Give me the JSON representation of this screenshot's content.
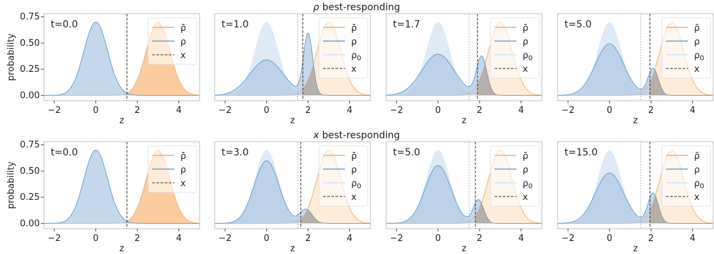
{
  "colors": {
    "blue_line": "#6a9fcc",
    "blue_fill": "#aec8e2",
    "blue_faint": "#dce8f4",
    "orange_line": "#f3b06a",
    "orange_fill": "#fcc99a",
    "orange_faint": "#fdebd7",
    "dashed": "#333333",
    "faint_dashed": "#9a9a9a",
    "frame": "#bdbdbd"
  },
  "rows": [
    {
      "title_sym": "ρ",
      "title_rest": " best-responding"
    },
    {
      "title_sym": "x",
      "title_rest": " best-responding"
    }
  ],
  "chart_data": [
    {
      "type": "area",
      "row": 0,
      "col": 0,
      "t_label": "t=0.0",
      "xlim": [
        -2.5,
        5
      ],
      "ylim": [
        -0.05,
        0.78
      ],
      "xticks": [
        -2,
        0,
        2,
        4
      ],
      "yticks": [
        0.0,
        0.25,
        0.5,
        0.75
      ],
      "ytick_labels": [
        "0.00",
        "0.25",
        "0.50",
        "0.75"
      ],
      "xlabel": "z",
      "ylabel": "probability",
      "x_line": 1.5,
      "x0_line": null,
      "rho": {
        "components": [
          {
            "w": 1.0,
            "mu": 0.0,
            "sd": 0.57
          }
        ]
      },
      "rho0": null,
      "rho_bar": {
        "mu": 3.0,
        "sd": 0.57,
        "w": 1.0
      },
      "legend": [
        "ρ̄",
        "ρ",
        "x"
      ]
    },
    {
      "type": "area",
      "row": 0,
      "col": 1,
      "t_label": "t=1.0",
      "xlim": [
        -2.5,
        5
      ],
      "ylim": [
        -0.05,
        0.78
      ],
      "xticks": [
        -2,
        0,
        2,
        4
      ],
      "yticks": [
        0.0,
        0.25,
        0.5,
        0.75
      ],
      "xlabel": "z",
      "ylabel": "",
      "x_line": 1.75,
      "x0_line": 1.5,
      "rho": {
        "components": [
          {
            "w": 0.68,
            "mu": 0.0,
            "sd": 0.8
          },
          {
            "w": 0.32,
            "mu": 2.0,
            "sd": 0.22
          }
        ]
      },
      "rho0": {
        "mu": 0.0,
        "sd": 0.57,
        "w": 1.0
      },
      "rho_bar": {
        "mu": 3.0,
        "sd": 0.57,
        "w": 1.0
      },
      "legend": [
        "ρ̄",
        "ρ",
        "ρ0",
        "x"
      ]
    },
    {
      "type": "area",
      "row": 0,
      "col": 2,
      "t_label": "t=1.7",
      "xlim": [
        -2.5,
        5
      ],
      "ylim": [
        -0.05,
        0.78
      ],
      "xticks": [
        -2,
        0,
        2,
        4
      ],
      "yticks": [
        0.0,
        0.25,
        0.5,
        0.75
      ],
      "xlabel": "z",
      "ylabel": "",
      "x_line": 1.9,
      "x0_line": 1.5,
      "rho": {
        "components": [
          {
            "w": 0.77,
            "mu": 0.0,
            "sd": 0.78
          },
          {
            "w": 0.23,
            "mu": 2.1,
            "sd": 0.25
          }
        ]
      },
      "rho0": {
        "mu": 0.0,
        "sd": 0.57,
        "w": 1.0
      },
      "rho_bar": {
        "mu": 3.0,
        "sd": 0.57,
        "w": 1.0
      },
      "legend": [
        "ρ̄",
        "ρ",
        "ρ0",
        "x"
      ]
    },
    {
      "type": "area",
      "row": 0,
      "col": 3,
      "t_label": "t=5.0",
      "xlim": [
        -2.5,
        5
      ],
      "ylim": [
        -0.05,
        0.78
      ],
      "xticks": [
        -2,
        0,
        2,
        4
      ],
      "yticks": [
        0.0,
        0.25,
        0.5,
        0.75
      ],
      "xlabel": "z",
      "ylabel": "",
      "x_line": 1.95,
      "x0_line": 1.5,
      "rho": {
        "components": [
          {
            "w": 0.84,
            "mu": 0.0,
            "sd": 0.68
          },
          {
            "w": 0.16,
            "mu": 2.1,
            "sd": 0.25
          }
        ]
      },
      "rho0": {
        "mu": 0.0,
        "sd": 0.57,
        "w": 1.0
      },
      "rho_bar": {
        "mu": 3.0,
        "sd": 0.57,
        "w": 1.0
      },
      "legend": [
        "ρ̄",
        "ρ",
        "ρ0",
        "x"
      ]
    },
    {
      "type": "area",
      "row": 1,
      "col": 0,
      "t_label": "t=0.0",
      "xlim": [
        -2.5,
        5
      ],
      "ylim": [
        -0.05,
        0.78
      ],
      "xticks": [
        -2,
        0,
        2,
        4
      ],
      "yticks": [
        0.0,
        0.25,
        0.5,
        0.75
      ],
      "ytick_labels": [
        "0.00",
        "0.25",
        "0.50",
        "0.75"
      ],
      "xlabel": "z",
      "ylabel": "probability",
      "x_line": 1.5,
      "x0_line": null,
      "rho": {
        "components": [
          {
            "w": 1.0,
            "mu": 0.0,
            "sd": 0.57
          }
        ]
      },
      "rho0": null,
      "rho_bar": {
        "mu": 3.0,
        "sd": 0.57,
        "w": 1.0
      },
      "legend": [
        "ρ̄",
        "ρ",
        "x"
      ]
    },
    {
      "type": "area",
      "row": 1,
      "col": 1,
      "t_label": "t=3.0",
      "xlim": [
        -2.5,
        5
      ],
      "ylim": [
        -0.05,
        0.78
      ],
      "xticks": [
        -2,
        0,
        2,
        4
      ],
      "yticks": [
        0.0,
        0.25,
        0.5,
        0.75
      ],
      "xlabel": "z",
      "ylabel": "",
      "x_line": 1.65,
      "x0_line": 1.5,
      "rho": {
        "components": [
          {
            "w": 0.9,
            "mu": 0.0,
            "sd": 0.6
          },
          {
            "w": 0.1,
            "mu": 1.9,
            "sd": 0.3
          }
        ]
      },
      "rho0": {
        "mu": 0.0,
        "sd": 0.57,
        "w": 1.0
      },
      "rho_bar": {
        "mu": 3.0,
        "sd": 0.57,
        "w": 1.0
      },
      "legend": [
        "ρ̄",
        "ρ",
        "ρ0",
        "x"
      ]
    },
    {
      "type": "area",
      "row": 1,
      "col": 2,
      "t_label": "t=5.0",
      "xlim": [
        -2.5,
        5
      ],
      "ylim": [
        -0.05,
        0.78
      ],
      "xticks": [
        -2,
        0,
        2,
        4
      ],
      "yticks": [
        0.0,
        0.25,
        0.5,
        0.75
      ],
      "xlabel": "z",
      "ylabel": "",
      "x_line": 1.8,
      "x0_line": 1.5,
      "rho": {
        "components": [
          {
            "w": 0.86,
            "mu": 0.0,
            "sd": 0.62
          },
          {
            "w": 0.14,
            "mu": 1.95,
            "sd": 0.25
          }
        ]
      },
      "rho0": {
        "mu": 0.0,
        "sd": 0.57,
        "w": 1.0
      },
      "rho_bar": {
        "mu": 3.0,
        "sd": 0.57,
        "w": 1.0
      },
      "legend": [
        "ρ̄",
        "ρ",
        "ρ0",
        "x"
      ]
    },
    {
      "type": "area",
      "row": 1,
      "col": 3,
      "t_label": "t=15.0",
      "xlim": [
        -2.5,
        5
      ],
      "ylim": [
        -0.05,
        0.78
      ],
      "xticks": [
        -2,
        0,
        2,
        4
      ],
      "yticks": [
        0.0,
        0.25,
        0.5,
        0.75
      ],
      "xlabel": "z",
      "ylabel": "",
      "x_line": 1.95,
      "x0_line": 1.5,
      "rho": {
        "components": [
          {
            "w": 0.82,
            "mu": 0.0,
            "sd": 0.68
          },
          {
            "w": 0.18,
            "mu": 2.1,
            "sd": 0.25
          }
        ]
      },
      "rho0": {
        "mu": 0.0,
        "sd": 0.57,
        "w": 1.0
      },
      "rho_bar": {
        "mu": 3.0,
        "sd": 0.57,
        "w": 1.0
      },
      "legend": [
        "ρ̄",
        "ρ",
        "ρ0",
        "x"
      ]
    }
  ]
}
